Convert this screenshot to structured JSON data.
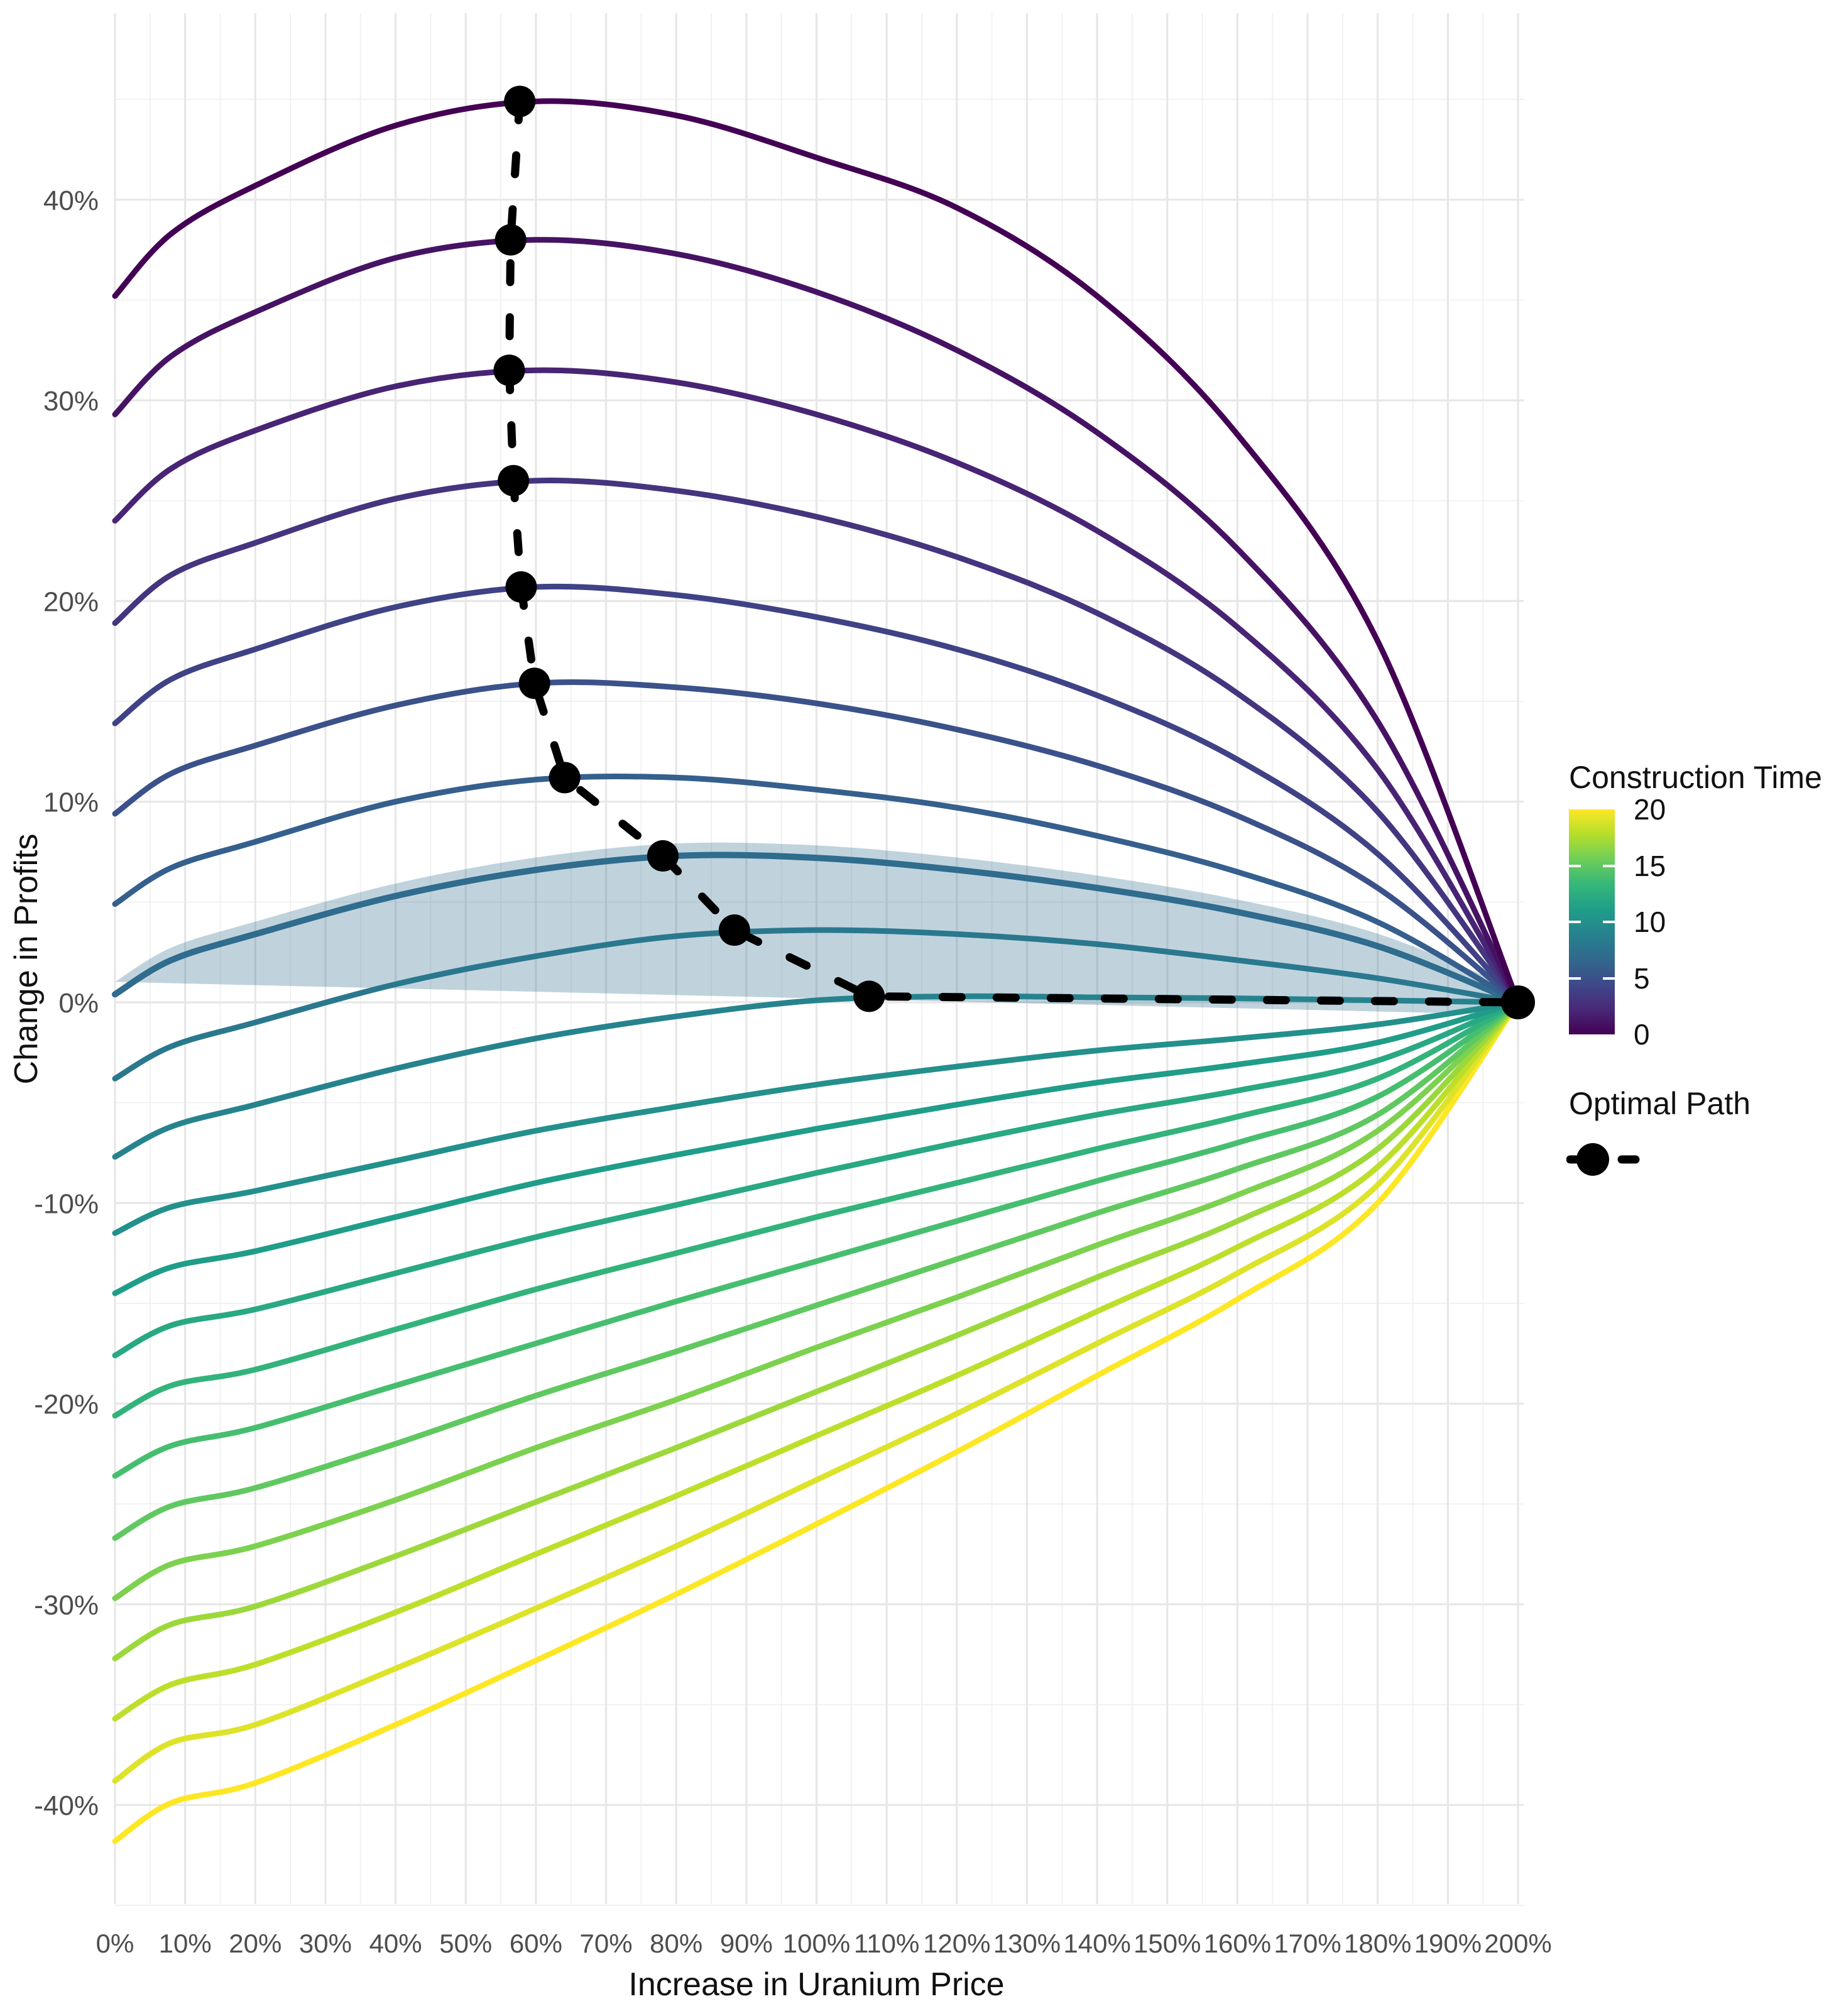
{
  "chart_data": {
    "type": "line",
    "xlabel": "Increase in Uranium Price",
    "ylabel": "Change in Profits",
    "xlim": [
      0,
      200
    ],
    "ylim": [
      -45,
      49.3
    ],
    "grid": true,
    "x_ticks": [
      0,
      10,
      20,
      30,
      40,
      50,
      60,
      70,
      80,
      90,
      100,
      110,
      120,
      130,
      140,
      150,
      160,
      170,
      180,
      190,
      200
    ],
    "x_tick_labels": [
      "0%",
      "10%",
      "20%",
      "30%",
      "40%",
      "50%",
      "60%",
      "70%",
      "80%",
      "90%",
      "100%",
      "110%",
      "120%",
      "130%",
      "140%",
      "150%",
      "160%",
      "170%",
      "180%",
      "190%",
      "200%"
    ],
    "y_ticks": [
      40,
      30,
      20,
      10,
      0,
      -10,
      -20,
      -30,
      -40
    ],
    "y_tick_labels": [
      "40%",
      "30%",
      "20%",
      "10%",
      "0%",
      "-10%",
      "-20%",
      "-30%",
      "-40%"
    ],
    "x": [
      0,
      8,
      20,
      40,
      60,
      80,
      100,
      120,
      140,
      160,
      180,
      200
    ],
    "series": [
      {
        "construction_time": 0,
        "values": [
          35.2,
          38.3,
          40.7,
          43.7,
          44.9,
          44.2,
          42.1,
          39.6,
          35.2,
          28.3,
          18.0,
          0
        ]
      },
      {
        "construction_time": 1,
        "values": [
          29.3,
          32.2,
          34.4,
          37.1,
          38.0,
          37.3,
          35.4,
          32.5,
          28.4,
          22.6,
          14.0,
          0
        ]
      },
      {
        "construction_time": 2,
        "values": [
          24.0,
          26.6,
          28.5,
          30.7,
          31.5,
          30.9,
          29.3,
          26.9,
          23.5,
          18.7,
          11.6,
          0
        ]
      },
      {
        "construction_time": 3,
        "values": [
          18.9,
          21.3,
          22.9,
          25.1,
          26.0,
          25.5,
          24.2,
          22.2,
          19.4,
          15.4,
          9.5,
          0
        ]
      },
      {
        "construction_time": 4,
        "values": [
          13.9,
          16.1,
          17.6,
          19.7,
          20.7,
          20.3,
          19.2,
          17.6,
          15.3,
          12.1,
          7.4,
          0
        ]
      },
      {
        "construction_time": 5,
        "values": [
          9.4,
          11.4,
          12.8,
          14.8,
          15.9,
          15.7,
          14.9,
          13.6,
          11.8,
          9.3,
          5.7,
          0
        ]
      },
      {
        "construction_time": 6,
        "values": [
          4.9,
          6.7,
          8.0,
          10.0,
          11.1,
          11.2,
          10.6,
          9.7,
          8.3,
          6.5,
          4.0,
          0
        ]
      },
      {
        "construction_time": 7,
        "values": [
          0.4,
          2.1,
          3.4,
          5.3,
          6.6,
          7.3,
          7.2,
          6.6,
          5.7,
          4.5,
          2.8,
          0
        ]
      },
      {
        "construction_time": 8,
        "values": [
          -3.8,
          -2.2,
          -1.0,
          0.9,
          2.3,
          3.3,
          3.6,
          3.4,
          2.9,
          2.1,
          1.2,
          0
        ]
      },
      {
        "construction_time": 9,
        "values": [
          -7.7,
          -6.2,
          -5.1,
          -3.3,
          -1.8,
          -0.7,
          0.1,
          0.3,
          0.25,
          0.2,
          0.1,
          0
        ]
      },
      {
        "construction_time": 10,
        "values": [
          -11.5,
          -10.2,
          -9.4,
          -7.9,
          -6.4,
          -5.2,
          -4.1,
          -3.2,
          -2.4,
          -1.8,
          -1.1,
          0
        ]
      },
      {
        "construction_time": 11,
        "values": [
          -14.5,
          -13.2,
          -12.4,
          -10.7,
          -9.0,
          -7.6,
          -6.3,
          -5.1,
          -4.0,
          -3.1,
          -2.0,
          0
        ]
      },
      {
        "construction_time": 12,
        "values": [
          -17.6,
          -16.1,
          -15.3,
          -13.5,
          -11.7,
          -10.1,
          -8.5,
          -7.0,
          -5.6,
          -4.4,
          -2.9,
          0
        ]
      },
      {
        "construction_time": 13,
        "values": [
          -20.6,
          -19.1,
          -18.3,
          -16.3,
          -14.3,
          -12.5,
          -10.7,
          -9.0,
          -7.3,
          -5.7,
          -3.8,
          0
        ]
      },
      {
        "construction_time": 14,
        "values": [
          -23.6,
          -22.1,
          -21.2,
          -19.1,
          -17.0,
          -14.9,
          -12.9,
          -10.9,
          -8.9,
          -7.0,
          -4.7,
          0
        ]
      },
      {
        "construction_time": 15,
        "values": [
          -26.7,
          -25.1,
          -24.2,
          -22.0,
          -19.6,
          -17.4,
          -15.1,
          -12.8,
          -10.5,
          -8.3,
          -5.6,
          0
        ]
      },
      {
        "construction_time": 16,
        "values": [
          -29.7,
          -28.0,
          -27.1,
          -24.8,
          -22.2,
          -19.8,
          -17.2,
          -14.7,
          -12.1,
          -9.6,
          -6.4,
          0
        ]
      },
      {
        "construction_time": 17,
        "values": [
          -32.7,
          -31.0,
          -30.1,
          -27.6,
          -24.9,
          -22.2,
          -19.4,
          -16.6,
          -13.7,
          -10.9,
          -7.3,
          0
        ]
      },
      {
        "construction_time": 18,
        "values": [
          -35.7,
          -34.0,
          -33.0,
          -30.4,
          -27.5,
          -24.6,
          -21.6,
          -18.6,
          -15.4,
          -12.2,
          -8.2,
          0
        ]
      },
      {
        "construction_time": 19,
        "values": [
          -38.8,
          -36.9,
          -36.0,
          -33.2,
          -30.2,
          -27.1,
          -23.8,
          -20.5,
          -17.0,
          -13.5,
          -9.1,
          0
        ]
      },
      {
        "construction_time": 20,
        "values": [
          -41.8,
          -39.9,
          -38.9,
          -36.0,
          -32.8,
          -29.5,
          -26.0,
          -22.4,
          -18.6,
          -14.8,
          -10.0,
          0
        ]
      }
    ],
    "highlight": {
      "construction_time": 7,
      "ribbon_halfwidth": 0.62,
      "ribbon_opacity": 0.3
    },
    "optimal_path": {
      "label": "Optimal Path",
      "points": [
        [
          57.7,
          44.9
        ],
        [
          56.4,
          38.0
        ],
        [
          56.2,
          31.5
        ],
        [
          56.8,
          26.0
        ],
        [
          57.9,
          20.7
        ],
        [
          59.8,
          15.9
        ],
        [
          64.1,
          11.2
        ],
        [
          78.1,
          7.3
        ],
        [
          88.3,
          3.6
        ],
        [
          107.5,
          0.3
        ],
        [
          200,
          0
        ]
      ]
    },
    "legend": {
      "title": "Construction Time",
      "range": [
        0,
        20
      ],
      "ticks": [
        0,
        5,
        10,
        15,
        20
      ],
      "position": "right"
    },
    "colors": {
      "viridis_anchors": [
        "#440154",
        "#482878",
        "#3e4989",
        "#31688e",
        "#26828e",
        "#1f9e89",
        "#35b779",
        "#6ece58",
        "#b5de2b",
        "#fde725"
      ],
      "grid_major": "#e7e7e7",
      "grid_minor": "#f0f0f0",
      "tick_text": "#4d4d4d",
      "title_text": "#111111",
      "optimal_path": "#000000"
    }
  }
}
